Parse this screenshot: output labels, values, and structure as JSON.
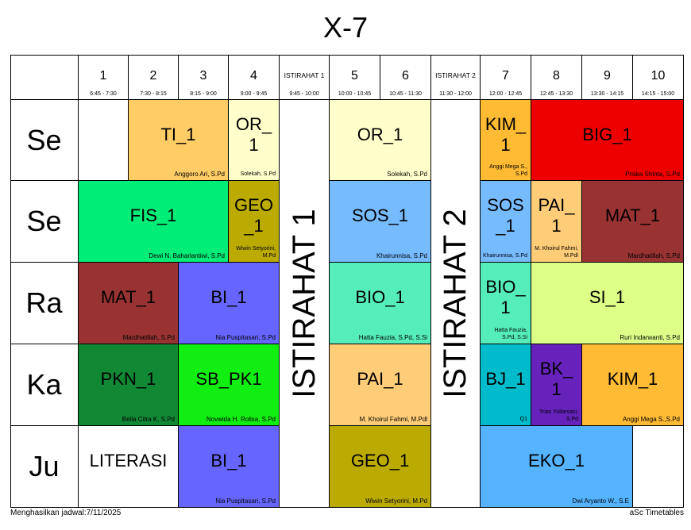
{
  "title": "X-7",
  "periods": [
    {
      "label": "1",
      "time": "6:45 - 7:30"
    },
    {
      "label": "2",
      "time": "7:30 - 8:15"
    },
    {
      "label": "3",
      "time": "8:15 - 9:00"
    },
    {
      "label": "4",
      "time": "9:00 - 9:45"
    },
    {
      "label": "ISTIRAHAT 1",
      "time": "9:45 - 10:00"
    },
    {
      "label": "5",
      "time": "10:00 - 10:45"
    },
    {
      "label": "6",
      "time": "10:45 - 11:30"
    },
    {
      "label": "ISTIRAHAT 2",
      "time": "11:30 - 12:00"
    },
    {
      "label": "7",
      "time": "12:00 - 12:45"
    },
    {
      "label": "8",
      "time": "12:45 - 13:30"
    },
    {
      "label": "9",
      "time": "13:30 - 14:15"
    },
    {
      "label": "10",
      "time": "14:15 - 15:00"
    }
  ],
  "days": [
    "Se",
    "Se",
    "Ra",
    "Ka",
    "Ju"
  ],
  "breaks": [
    "ISTIRAHAT 1",
    "ISTIRAHAT 2"
  ],
  "lessons": {
    "d0_tik": {
      "subject": "TI_1",
      "teacher": "Anggoro Ari, S.Pd",
      "color": "#ffcc66"
    },
    "d0_or1": {
      "subject": "OR_\n1",
      "teacher": "Solekah, S.Pd",
      "color": "#ffffcc"
    },
    "d0_or2": {
      "subject": "OR_1",
      "teacher": "Solekah, S.Pd",
      "color": "#ffffcc"
    },
    "d0_kim": {
      "subject": "KIM_\n1",
      "teacher": "Anggi Mega S., S.Pd",
      "color": "#ffbb33"
    },
    "d0_big": {
      "subject": "BIG_1",
      "teacher": "Priska Shinta, S.Pd",
      "color": "#ee0000"
    },
    "d1_fis": {
      "subject": "FIS_1",
      "teacher": "Dewi N. Baharlantiwi, S.Pd",
      "color": "#00ee77"
    },
    "d1_geo": {
      "subject": "GEO\n_1",
      "teacher": "Wiwin Setyorini, M.Pd",
      "color": "#bbaa00"
    },
    "d1_sos": {
      "subject": "SOS_1",
      "teacher": "Khairunnisa, S.Pd",
      "color": "#77bbff"
    },
    "d1_sos2": {
      "subject": "SOS\n_1",
      "teacher": "Khairunnisa, S.Pd",
      "color": "#77bbff"
    },
    "d1_pai": {
      "subject": "PAI_\n1",
      "teacher": "M. Khoirul Fahmi, M.Pdl",
      "color": "#ffcc77"
    },
    "d1_mat": {
      "subject": "MAT_1",
      "teacher": "Mardhatillah, S.Pd",
      "color": "#993333"
    },
    "d2_mat": {
      "subject": "MAT_1",
      "teacher": "Mardhatillah, S.Pd",
      "color": "#993333"
    },
    "d2_bi": {
      "subject": "BI_1",
      "teacher": "Nia Puspitasari, S.Pd",
      "color": "#6666ff"
    },
    "d2_bio": {
      "subject": "BIO_1",
      "teacher": "Hatta Fauzia, S.Pd, S.Si",
      "color": "#55eebb"
    },
    "d2_bio2": {
      "subject": "BIO_\n1",
      "teacher": "Hatta Fauzia, S.Pd, S.Si",
      "color": "#55eebb"
    },
    "d2_si": {
      "subject": "SI_1",
      "teacher": "Ruri Indarwanti, S.Pd",
      "color": "#ddff88"
    },
    "d3_pkn": {
      "subject": "PKN_1",
      "teacher": "Bella Citra K, S.Pd",
      "color": "#118833"
    },
    "d3_sb": {
      "subject": "SB_PK1",
      "teacher": "Novwida H. Rolisa, S.Pd",
      "color": "#11ee11"
    },
    "d3_pai": {
      "subject": "PAI_1",
      "teacher": "M. Khoirul Fahmi, M.Pdl",
      "color": "#ffcc77"
    },
    "d3_bj": {
      "subject": "BJ_1",
      "teacher": "Q1",
      "color": "#00bbcc"
    },
    "d3_bk": {
      "subject": "BK_\n1",
      "teacher": "Trias Yuliarsasi, S.Pd",
      "color": "#6622bb"
    },
    "d3_kim": {
      "subject": "KIM_1",
      "teacher": "Anggi Mega S.,S.Pd",
      "color": "#ffbb33"
    },
    "d4_lit": {
      "subject": "LITERASI",
      "teacher": "",
      "color": "#ffffff"
    },
    "d4_bi": {
      "subject": "BI_1",
      "teacher": "Nia Puspitasari, S.Pd",
      "color": "#6666ff"
    },
    "d4_geo": {
      "subject": "GEO_1",
      "teacher": "Wiwin Setyorini, M.Pd",
      "color": "#bbaa00"
    },
    "d4_eko": {
      "subject": "EKO_1",
      "teacher": "Dwi Aryanto W., S.E",
      "color": "#55b3ff"
    }
  },
  "footer": {
    "left": "Menghasilkan jadwal:7/11/2025",
    "right": "aSc Timetables"
  }
}
